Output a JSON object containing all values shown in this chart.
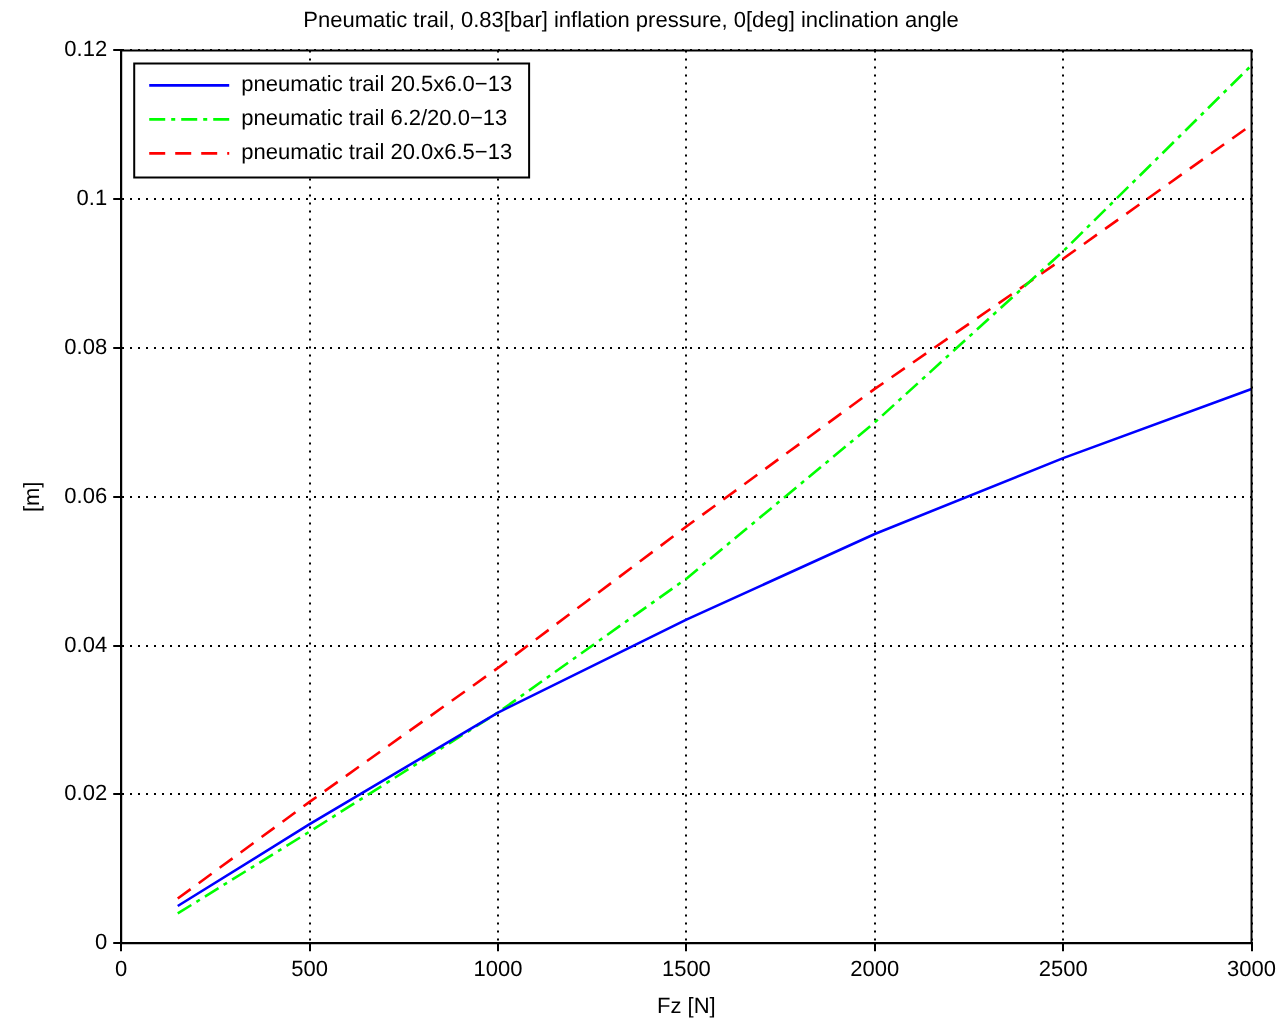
{
  "chart_data": {
    "type": "line",
    "title": "Pneumatic trail, 0.83[bar] inflation pressure, 0[deg] inclination angle",
    "xlabel": "Fz [N]",
    "ylabel": "[m]",
    "x": [
      150,
      500,
      1000,
      1500,
      2000,
      2500,
      3000
    ],
    "series": [
      {
        "name": "pneumatic trail 20.5x6.0−13",
        "color": "#0000ff",
        "line_style": "solid",
        "values": [
          0.005,
          0.016,
          0.031,
          0.0435,
          0.055,
          0.0652,
          0.0745
        ]
      },
      {
        "name": "pneumatic trail 6.2/20.0−13",
        "color": "#00ff00",
        "line_style": "dashdot",
        "values": [
          0.004,
          0.015,
          0.031,
          0.049,
          0.07,
          0.093,
          0.118
        ]
      },
      {
        "name": "pneumatic trail 20.0x6.5−13",
        "color": "#ff0000",
        "line_style": "dashed",
        "values": [
          0.006,
          0.019,
          0.037,
          0.056,
          0.0745,
          0.092,
          0.11
        ]
      }
    ],
    "xlim": [
      0,
      3000
    ],
    "xticks": [
      0,
      500,
      1000,
      1500,
      2000,
      2500,
      3000
    ],
    "ylim": [
      0,
      0.12
    ],
    "yticks": [
      0,
      0.02,
      0.04,
      0.06,
      0.08,
      0.1,
      0.12
    ],
    "grid": true,
    "legend": "top left",
    "marker": "none"
  }
}
